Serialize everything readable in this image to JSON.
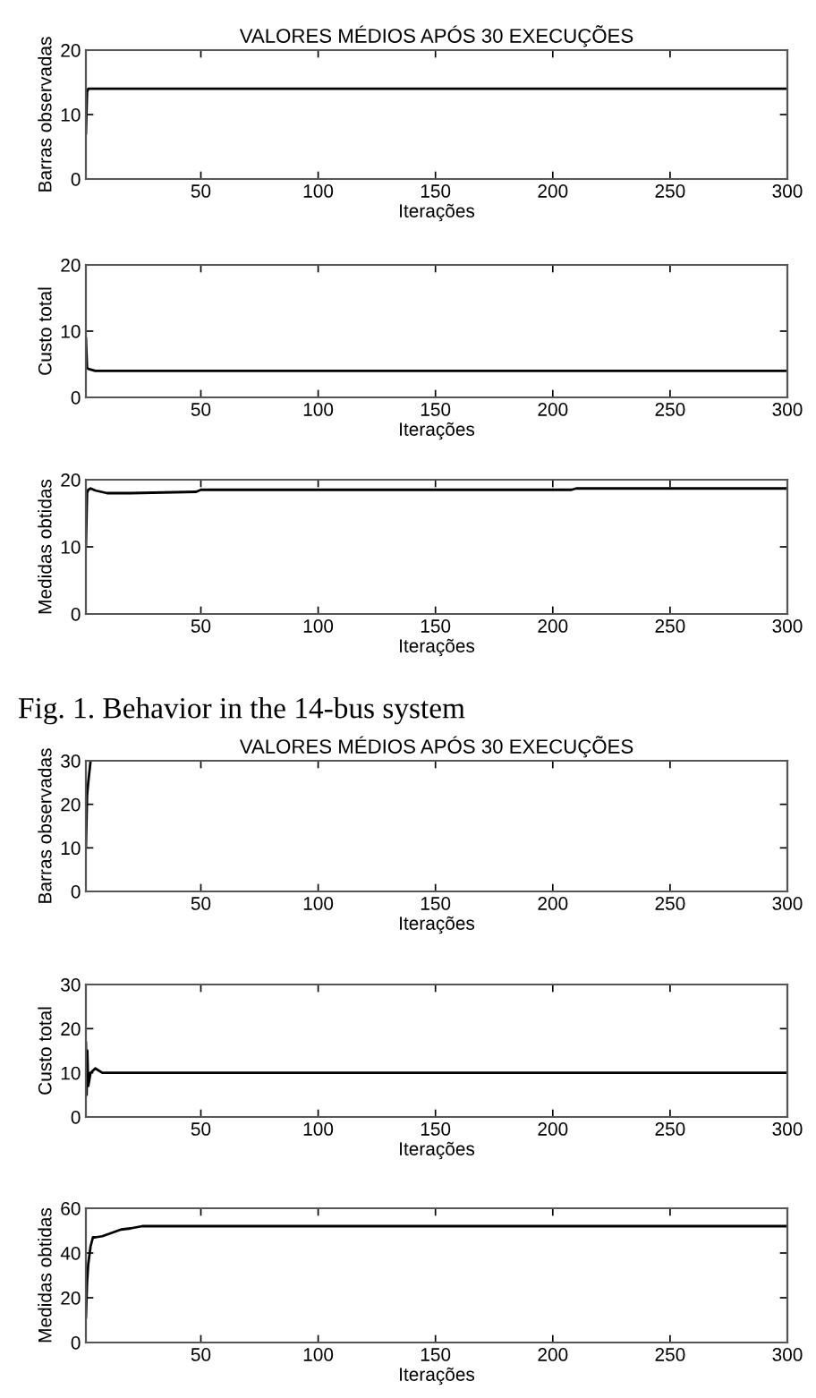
{
  "chart_data": [
    {
      "type": "line",
      "title": "VALORES MÉDIOS APÓS 30 EXECUÇÕES",
      "xlabel": "Iterações",
      "ylabel": "Barras observadas",
      "xlim": [
        1,
        300
      ],
      "xticks": [
        50,
        100,
        150,
        200,
        250,
        300
      ],
      "ylim": [
        0,
        20
      ],
      "yticks": [
        0,
        10,
        20
      ],
      "grid": false,
      "legend": false,
      "series": [
        {
          "color": "#000000",
          "x": [
            1,
            1.5,
            2,
            300
          ],
          "values": [
            7,
            13.5,
            14,
            14
          ]
        }
      ]
    },
    {
      "type": "line",
      "xlabel": "Iterações",
      "ylabel": "Custo total",
      "xlim": [
        1,
        300
      ],
      "xticks": [
        50,
        100,
        150,
        200,
        250,
        300
      ],
      "ylim": [
        0,
        20
      ],
      "yticks": [
        0,
        10,
        20
      ],
      "grid": false,
      "legend": false,
      "series": [
        {
          "color": "#000000",
          "x": [
            1,
            1.5,
            2,
            5,
            300
          ],
          "values": [
            9,
            4.5,
            4.3,
            4,
            4
          ]
        }
      ]
    },
    {
      "type": "line",
      "xlabel": "Iterações",
      "ylabel": "Medidas obtidas",
      "xlim": [
        1,
        300
      ],
      "xticks": [
        50,
        100,
        150,
        200,
        250,
        300
      ],
      "ylim": [
        0,
        20
      ],
      "yticks": [
        0,
        10,
        20
      ],
      "grid": false,
      "legend": false,
      "annotations": [
        "Fig. 1. Behavior in the 14-bus system"
      ],
      "series": [
        {
          "color": "#000000",
          "x": [
            1,
            1.5,
            2,
            3,
            5,
            10,
            20,
            48,
            50,
            208,
            210,
            300
          ],
          "values": [
            10,
            18,
            18.5,
            18.7,
            18.4,
            18,
            18,
            18.2,
            18.5,
            18.5,
            18.7,
            18.7
          ]
        }
      ]
    },
    {
      "type": "line",
      "title": "VALORES MÉDIOS APÓS 30 EXECUÇÕES",
      "xlabel": "Iterações",
      "ylabel": "Barras observadas",
      "xlim": [
        1,
        300
      ],
      "xticks": [
        50,
        100,
        150,
        200,
        250,
        300
      ],
      "ylim": [
        0,
        30
      ],
      "yticks": [
        0,
        10,
        20,
        30
      ],
      "grid": false,
      "legend": false,
      "series": [
        {
          "color": "#000000",
          "x": [
            1,
            1.5,
            2,
            3
          ],
          "values": [
            10,
            22,
            25,
            30
          ]
        }
      ]
    },
    {
      "type": "line",
      "xlabel": "Iterações",
      "ylabel": "Custo total",
      "xlim": [
        1,
        300
      ],
      "xticks": [
        50,
        100,
        150,
        200,
        250,
        300
      ],
      "ylim": [
        0,
        30
      ],
      "yticks": [
        0,
        10,
        20,
        30
      ],
      "grid": false,
      "legend": false,
      "series": [
        {
          "color": "#000000",
          "x": [
            1,
            1.3,
            1.6,
            2,
            3,
            5,
            8,
            300
          ],
          "values": [
            17,
            5,
            15,
            7,
            10,
            11,
            10,
            10
          ]
        }
      ]
    },
    {
      "type": "line",
      "xlabel": "Iterações",
      "ylabel": "Medidas obtidas",
      "xlim": [
        1,
        300
      ],
      "xticks": [
        50,
        100,
        150,
        200,
        250,
        300
      ],
      "ylim": [
        0,
        60
      ],
      "yticks": [
        0,
        20,
        40,
        60
      ],
      "grid": false,
      "legend": false,
      "series": [
        {
          "color": "#000000",
          "x": [
            1,
            1.5,
            2,
            3,
            4,
            5,
            8,
            12,
            16,
            20,
            25,
            300
          ],
          "values": [
            11,
            27,
            35,
            43,
            47,
            47,
            47.5,
            49,
            50.5,
            51,
            52,
            52
          ]
        }
      ]
    }
  ]
}
